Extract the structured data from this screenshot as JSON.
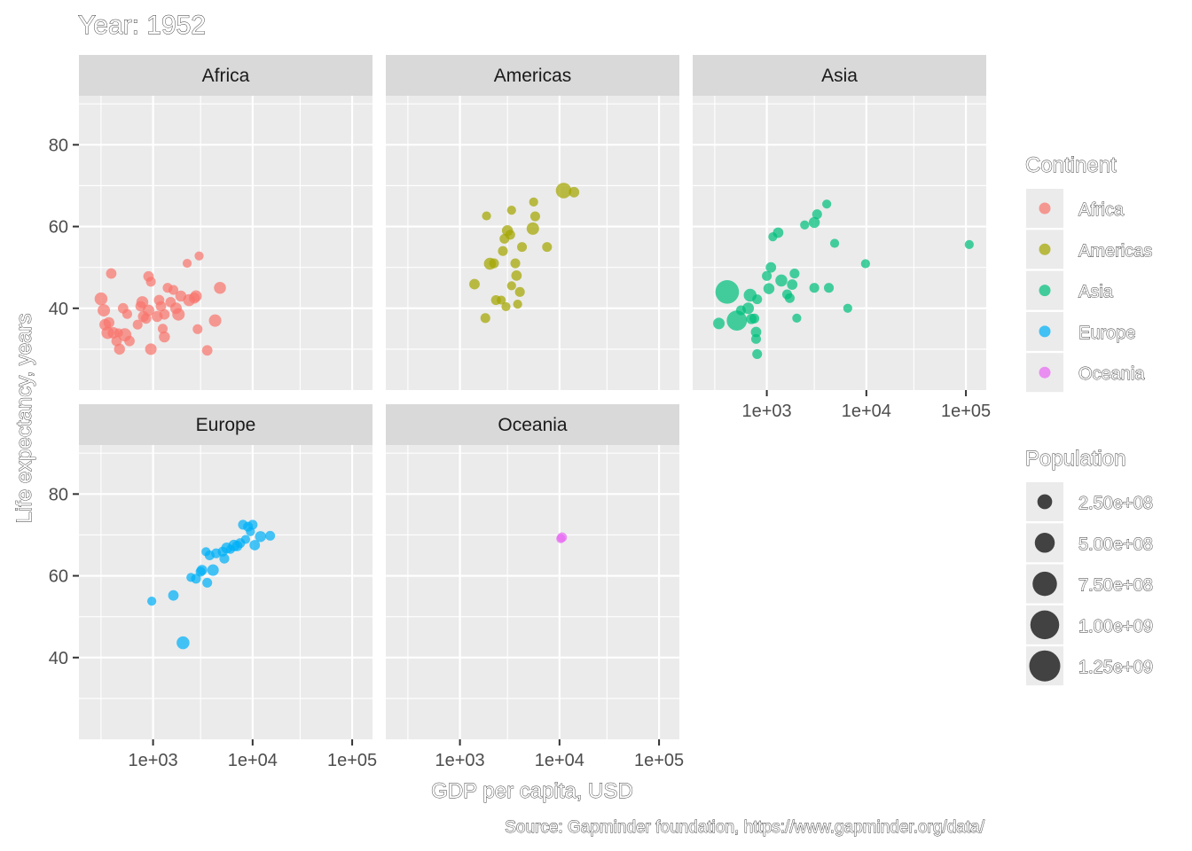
{
  "chart_data": {
    "type": "scatter",
    "title": "Year: 1952",
    "xlabel": "GDP per capita, USD",
    "ylabel": "Life expectancy, years",
    "caption": "Source: Gapminder foundation, https://www.gapminder.org/data/",
    "x_scale": "log10",
    "xlim": [
      180,
      160000
    ],
    "ylim": [
      20,
      92
    ],
    "x_ticks": [
      1000,
      10000,
      100000
    ],
    "x_tick_labels": [
      "1e+03",
      "1e+04",
      "1e+05"
    ],
    "y_ticks": [
      40,
      60,
      80
    ],
    "y_tick_labels": [
      "40",
      "60",
      "80"
    ],
    "grid": true,
    "legend_placement": "right",
    "colors": {
      "Africa": "#F8766D",
      "Americas": "#A3A500",
      "Asia": "#00BF7D",
      "Europe": "#00B0F6",
      "Oceania": "#E76BF3"
    },
    "size_legend": {
      "title": "Population",
      "values": [
        250000000,
        500000000,
        750000000,
        1000000000,
        1250000000
      ],
      "labels": [
        "2.50e+08",
        "5.00e+08",
        "7.50e+08",
        "1.00e+09",
        "1.25e+09"
      ]
    },
    "color_legend": {
      "title": "Continent",
      "labels": [
        "Africa",
        "Americas",
        "Asia",
        "Europe",
        "Oceania"
      ]
    },
    "panels": [
      {
        "name": "Africa",
        "points": [
          [
            300,
            42.3,
            9
          ],
          [
            320,
            39.5,
            8
          ],
          [
            330,
            36,
            6
          ],
          [
            350,
            34,
            8
          ],
          [
            360,
            36.5,
            5
          ],
          [
            380,
            48.5,
            4
          ],
          [
            400,
            34,
            6
          ],
          [
            430,
            32,
            4
          ],
          [
            450,
            34,
            2
          ],
          [
            460,
            30,
            5
          ],
          [
            500,
            40,
            4
          ],
          [
            520,
            33.5,
            10
          ],
          [
            550,
            38.6,
            3
          ],
          [
            580,
            32,
            4
          ],
          [
            700,
            36,
            3
          ],
          [
            750,
            40.5,
            4
          ],
          [
            780,
            41.5,
            7
          ],
          [
            800,
            38,
            5
          ],
          [
            850,
            37.5,
            4
          ],
          [
            900,
            39.5,
            6
          ],
          [
            900,
            47.8,
            4
          ],
          [
            950,
            46.5,
            3
          ],
          [
            950,
            30,
            6
          ],
          [
            1100,
            38,
            5
          ],
          [
            1150,
            42,
            4
          ],
          [
            1200,
            40.5,
            4
          ],
          [
            1250,
            35,
            3
          ],
          [
            1300,
            33,
            5
          ],
          [
            1300,
            38.5,
            4
          ],
          [
            1400,
            45,
            3
          ],
          [
            1500,
            41.5,
            4
          ],
          [
            1600,
            44.5,
            3
          ],
          [
            1700,
            40,
            6
          ],
          [
            1800,
            38.5,
            8
          ],
          [
            1900,
            43,
            5
          ],
          [
            2200,
            51,
            2
          ],
          [
            2300,
            42,
            7
          ],
          [
            2600,
            42.5,
            5
          ],
          [
            2700,
            43,
            6
          ],
          [
            2800,
            34.9,
            3
          ],
          [
            2900,
            52.8,
            2
          ],
          [
            3500,
            29.7,
            4
          ],
          [
            4200,
            37,
            8
          ],
          [
            4700,
            45,
            7
          ]
        ]
      },
      {
        "name": "Americas",
        "points": [
          [
            1400,
            45.9,
            4
          ],
          [
            1800,
            37.6,
            3
          ],
          [
            1850,
            62.6,
            2
          ],
          [
            2000,
            50.9,
            7
          ],
          [
            2200,
            51,
            3
          ],
          [
            2300,
            42,
            3
          ],
          [
            2600,
            42,
            2
          ],
          [
            2700,
            54,
            3
          ],
          [
            2800,
            57,
            3
          ],
          [
            2900,
            40.4,
            2
          ],
          [
            3000,
            59,
            5
          ],
          [
            3200,
            58,
            3
          ],
          [
            3300,
            64,
            2
          ],
          [
            3300,
            45.5,
            2
          ],
          [
            3600,
            51,
            3
          ],
          [
            3700,
            48,
            4
          ],
          [
            3800,
            41,
            2
          ],
          [
            4000,
            44,
            3
          ],
          [
            4200,
            55,
            3
          ],
          [
            5400,
            59.5,
            8
          ],
          [
            5500,
            66,
            2
          ],
          [
            5700,
            62.5,
            3
          ],
          [
            7500,
            55,
            3
          ],
          [
            11000,
            68.8,
            17
          ],
          [
            14000,
            68.4,
            4
          ]
        ]
      },
      {
        "name": "Asia",
        "points": [
          [
            330,
            36.3,
            6
          ],
          [
            400,
            44,
            56
          ],
          [
            500,
            37,
            37
          ],
          [
            550,
            39.5,
            3
          ],
          [
            650,
            40,
            6
          ],
          [
            680,
            43.2,
            9
          ],
          [
            700,
            37.4,
            4
          ],
          [
            750,
            37.5,
            3
          ],
          [
            780,
            34.2,
            4
          ],
          [
            780,
            32.5,
            3
          ],
          [
            800,
            42.2,
            3
          ],
          [
            800,
            28.8,
            3
          ],
          [
            1000,
            47.9,
            3
          ],
          [
            1050,
            44.8,
            5
          ],
          [
            1100,
            50,
            4
          ],
          [
            1150,
            57.5,
            2
          ],
          [
            1300,
            58.5,
            4
          ],
          [
            1400,
            46.8,
            7
          ],
          [
            1600,
            43.4,
            3
          ],
          [
            1700,
            42.5,
            3
          ],
          [
            1800,
            45.8,
            4
          ],
          [
            1900,
            48.5,
            3
          ],
          [
            2000,
            37.6,
            2
          ],
          [
            2400,
            60.4,
            2
          ],
          [
            3000,
            45,
            3
          ],
          [
            3000,
            61,
            5
          ],
          [
            3200,
            63,
            3
          ],
          [
            4000,
            65.5,
            2
          ],
          [
            4200,
            45,
            3
          ],
          [
            4800,
            55.9,
            2
          ],
          [
            6500,
            40,
            2
          ],
          [
            9800,
            50.9,
            2
          ],
          [
            108000,
            55.6,
            2
          ]
        ]
      },
      {
        "name": "Europe",
        "points": [
          [
            970,
            53.8,
            2
          ],
          [
            1600,
            55.2,
            4
          ],
          [
            2000,
            43.6,
            9
          ],
          [
            2400,
            59.6,
            2
          ],
          [
            2700,
            59.3,
            3
          ],
          [
            3000,
            61,
            3
          ],
          [
            3100,
            61.4,
            4
          ],
          [
            3400,
            65.9,
            2
          ],
          [
            3500,
            58.3,
            3
          ],
          [
            3700,
            65,
            3
          ],
          [
            4000,
            61.4,
            6
          ],
          [
            4300,
            65.5,
            3
          ],
          [
            5000,
            65.9,
            3
          ],
          [
            5200,
            64.2,
            3
          ],
          [
            5500,
            66.8,
            5
          ],
          [
            6000,
            66.5,
            2
          ],
          [
            6500,
            67.4,
            6
          ],
          [
            7000,
            67.3,
            4
          ],
          [
            7500,
            68,
            3
          ],
          [
            8000,
            72.5,
            3
          ],
          [
            8500,
            68.9,
            2
          ],
          [
            9000,
            72,
            3
          ],
          [
            9500,
            70.8,
            2
          ],
          [
            10000,
            72.5,
            3
          ],
          [
            10500,
            67.5,
            4
          ],
          [
            12000,
            69.6,
            5
          ],
          [
            15000,
            69.8,
            3
          ]
        ]
      },
      {
        "name": "Oceania",
        "points": [
          [
            10300,
            69.1,
            2
          ],
          [
            10600,
            69.4,
            3
          ]
        ]
      }
    ]
  }
}
